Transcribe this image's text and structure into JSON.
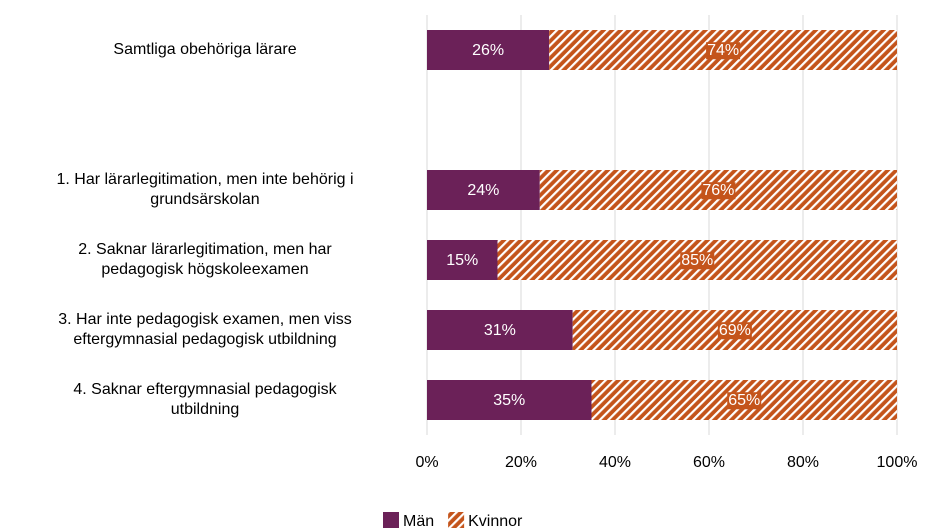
{
  "chart_data": {
    "type": "stacked_barh",
    "categories": [
      "Samtliga obehöriga lärare",
      null,
      "1. Har lärarlegitimation, men inte behörig i\ngrundsärskolan",
      "2. Saknar lärarlegitimation, men har\npedagogisk högskoleexamen",
      "3. Har inte pedagogisk examen, men viss\neftergymnasial pedagogisk utbildning",
      "4. Saknar eftergymnasial pedagogisk\nutbildning"
    ],
    "series": [
      {
        "name": "Män",
        "color": "#6b2158",
        "values": [
          26,
          null,
          24,
          15,
          31,
          35
        ],
        "value_labels": [
          "26%",
          null,
          "24%",
          "15%",
          "31%",
          "35%"
        ]
      },
      {
        "name": "Kvinnor",
        "color": "#c4541b",
        "hatch": true,
        "values": [
          74,
          null,
          76,
          85,
          69,
          65
        ],
        "value_labels": [
          "74%",
          null,
          "76%",
          "85%",
          "69%",
          "65%"
        ]
      }
    ],
    "xlim": [
      0,
      100
    ],
    "xticks": [
      {
        "value": 0,
        "label": "0%"
      },
      {
        "value": 20,
        "label": "20%"
      },
      {
        "value": 40,
        "label": "40%"
      },
      {
        "value": 60,
        "label": "60%"
      },
      {
        "value": 80,
        "label": "80%"
      },
      {
        "value": 100,
        "label": "100%"
      }
    ],
    "grid": true,
    "legend": "bottom"
  }
}
